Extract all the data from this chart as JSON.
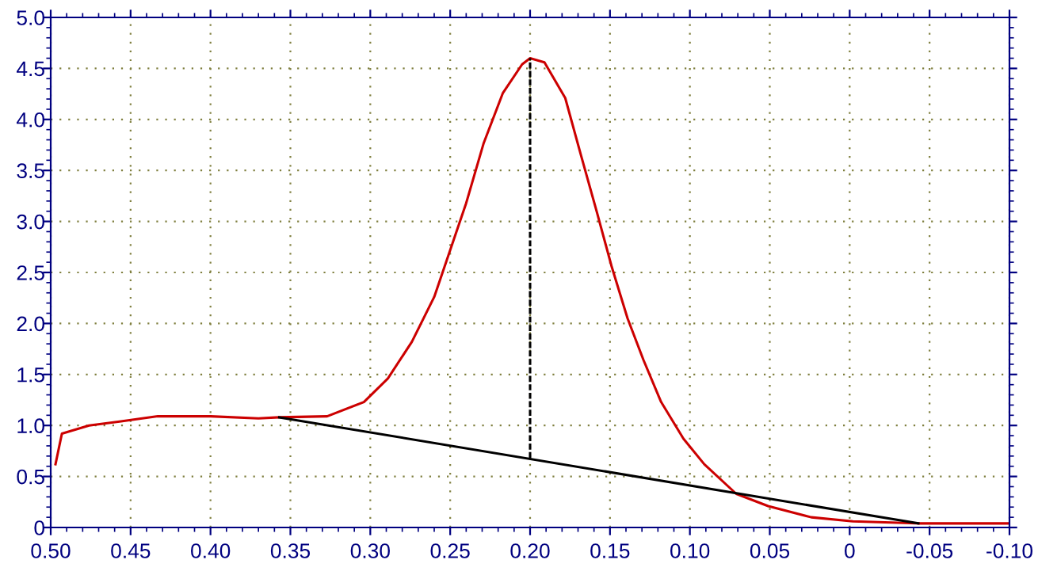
{
  "chart_data": {
    "type": "line",
    "xlim": [
      0.5,
      -0.1
    ],
    "xticks": [
      {
        "value": 0.5,
        "label": "0.50"
      },
      {
        "value": 0.45,
        "label": "0.45"
      },
      {
        "value": 0.4,
        "label": "0.40"
      },
      {
        "value": 0.35,
        "label": "0.35"
      },
      {
        "value": 0.3,
        "label": "0.30"
      },
      {
        "value": 0.25,
        "label": "0.25"
      },
      {
        "value": 0.2,
        "label": "0.20"
      },
      {
        "value": 0.15,
        "label": "0.15"
      },
      {
        "value": 0.1,
        "label": "0.10"
      },
      {
        "value": 0.05,
        "label": "0.05"
      },
      0,
      {
        "value": -0.05,
        "label": "-0.05"
      },
      {
        "value": -0.1,
        "label": "-0.10"
      }
    ],
    "ylim": [
      0,
      5
    ],
    "yticks": [
      0,
      0.5,
      {
        "value": 1,
        "label": "1.0"
      },
      1.5,
      {
        "value": 2,
        "label": "2.0"
      },
      2.5,
      {
        "value": 3,
        "label": "3.0"
      },
      3.5,
      {
        "value": 4,
        "label": "4.0"
      },
      4.5,
      {
        "value": 5,
        "label": "5.0"
      }
    ],
    "grid": true,
    "series": [
      {
        "color": "#cc0000",
        "line_style": "solid",
        "x": [
          0.497,
          0.493,
          0.476,
          0.456,
          0.433,
          0.4,
          0.37,
          0.357,
          0.327,
          0.304,
          0.289,
          0.274,
          0.26,
          0.25,
          0.24,
          0.229,
          0.217,
          0.205,
          0.2,
          0.191,
          0.178,
          0.168,
          0.158,
          0.149,
          0.139,
          0.129,
          0.118,
          0.104,
          0.091,
          0.071,
          0.051,
          0.024,
          -0.002,
          -0.042,
          -0.1
        ],
        "values": [
          0.62,
          0.92,
          1.0,
          1.04,
          1.09,
          1.09,
          1.07,
          1.08,
          1.09,
          1.23,
          1.46,
          1.82,
          2.26,
          2.72,
          3.18,
          3.77,
          4.26,
          4.54,
          4.6,
          4.56,
          4.21,
          3.64,
          3.08,
          2.56,
          2.05,
          1.64,
          1.23,
          0.87,
          0.62,
          0.33,
          0.21,
          0.1,
          0.06,
          0.04,
          0.04
        ]
      },
      {
        "color": "#000000",
        "line_style": "solid",
        "x": [
          0.357,
          -0.043
        ],
        "values": [
          1.08,
          0.04
        ]
      },
      {
        "color": "#000000",
        "line_style": "dashed",
        "x": [
          0.2,
          0.2
        ],
        "values": [
          0.68,
          4.6
        ]
      }
    ]
  }
}
